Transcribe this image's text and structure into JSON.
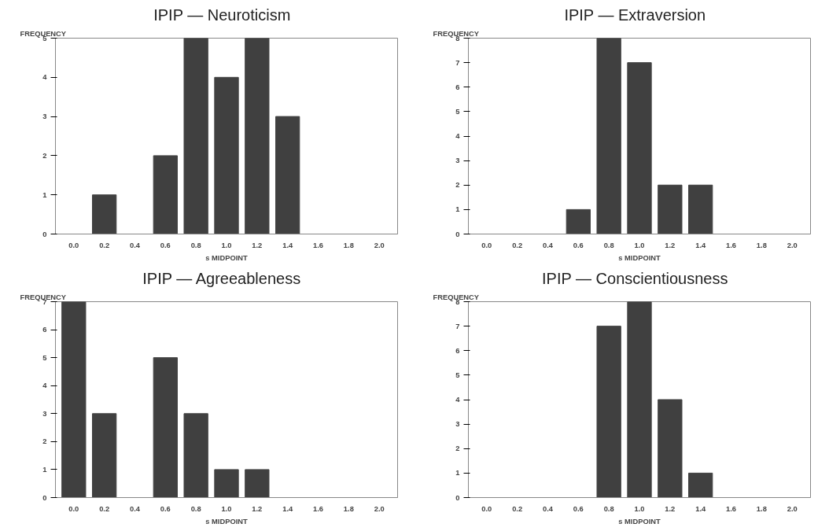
{
  "chart_data": [
    {
      "type": "bar",
      "title": "IPIP  —  Neuroticism",
      "xlabel": "s MIDPOINT",
      "ylabel": "FREQUENCY",
      "categories": [
        "0.0",
        "0.2",
        "0.4",
        "0.6",
        "0.8",
        "1.0",
        "1.2",
        "1.4",
        "1.6",
        "1.8",
        "2.0"
      ],
      "values": [
        0,
        1,
        0,
        2,
        5,
        4,
        5,
        3,
        0,
        0,
        0
      ],
      "color": "#404040",
      "ylim": [
        0,
        5
      ],
      "yticks": [
        0,
        1,
        2,
        3,
        4,
        5
      ],
      "grid": false
    },
    {
      "type": "bar",
      "title": "IPIP  —  Extraversion",
      "xlabel": "s MIDPOINT",
      "ylabel": "FREQUENCY",
      "categories": [
        "0.0",
        "0.2",
        "0.4",
        "0.6",
        "0.8",
        "1.0",
        "1.2",
        "1.4",
        "1.6",
        "1.8",
        "2.0"
      ],
      "values": [
        0,
        0,
        0,
        1,
        8,
        7,
        2,
        2,
        0,
        0,
        0
      ],
      "color": "#404040",
      "ylim": [
        0,
        8
      ],
      "yticks": [
        0,
        1,
        2,
        3,
        4,
        5,
        6,
        7,
        8
      ],
      "grid": false
    },
    {
      "type": "bar",
      "title": "IPIP  —  Agreeableness",
      "xlabel": "s MIDPOINT",
      "ylabel": "FREQUENCY",
      "categories": [
        "0.0",
        "0.2",
        "0.4",
        "0.6",
        "0.8",
        "1.0",
        "1.2",
        "1.4",
        "1.6",
        "1.8",
        "2.0"
      ],
      "values": [
        7,
        3,
        0,
        5,
        3,
        1,
        1,
        0,
        0,
        0,
        0
      ],
      "color": "#404040",
      "ylim": [
        0,
        7
      ],
      "yticks": [
        0,
        1,
        2,
        3,
        4,
        5,
        6,
        7
      ],
      "grid": false
    },
    {
      "type": "bar",
      "title": "IPIP  —  Conscientiousness",
      "xlabel": "s MIDPOINT",
      "ylabel": "FREQUENCY",
      "categories": [
        "0.0",
        "0.2",
        "0.4",
        "0.6",
        "0.8",
        "1.0",
        "1.2",
        "1.4",
        "1.6",
        "1.8",
        "2.0"
      ],
      "values": [
        0,
        0,
        0,
        0,
        7,
        8,
        4,
        1,
        0,
        0,
        0
      ],
      "color": "#404040",
      "ylim": [
        0,
        8
      ],
      "yticks": [
        0,
        1,
        2,
        3,
        4,
        5,
        6,
        7,
        8
      ],
      "grid": false
    }
  ]
}
